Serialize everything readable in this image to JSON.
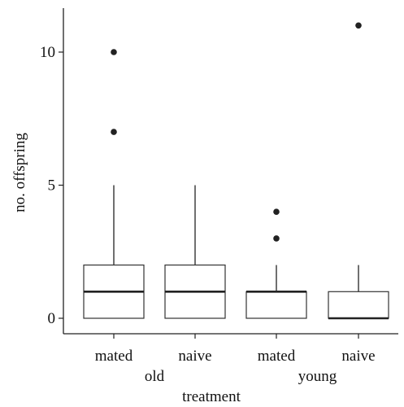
{
  "chart_data": {
    "type": "box",
    "xlabel": "treatment",
    "ylabel": "no. offspring",
    "ylim": [
      -0.6,
      11.6
    ],
    "yticks": [
      0,
      5,
      10
    ],
    "grid": false,
    "groups": [
      {
        "label": "old",
        "categories": [
          "mated",
          "naive"
        ]
      },
      {
        "label": "young",
        "categories": [
          "mated",
          "naive"
        ]
      }
    ],
    "boxes": [
      {
        "category": "mated",
        "group": "old",
        "whisker_low": 0,
        "q1": 0,
        "median": 1,
        "q3": 2,
        "whisker_high": 5,
        "outliers": [
          7,
          10
        ]
      },
      {
        "category": "naive",
        "group": "old",
        "whisker_low": 0,
        "q1": 0,
        "median": 1,
        "q3": 2,
        "whisker_high": 5,
        "outliers": []
      },
      {
        "category": "mated",
        "group": "young",
        "whisker_low": 0,
        "q1": 0,
        "median": 1,
        "q3": 1,
        "whisker_high": 2,
        "outliers": [
          3,
          4
        ]
      },
      {
        "category": "naive",
        "group": "young",
        "whisker_low": 0,
        "q1": 0,
        "median": 0,
        "q3": 1,
        "whisker_high": 2,
        "outliers": [
          11
        ]
      }
    ]
  }
}
